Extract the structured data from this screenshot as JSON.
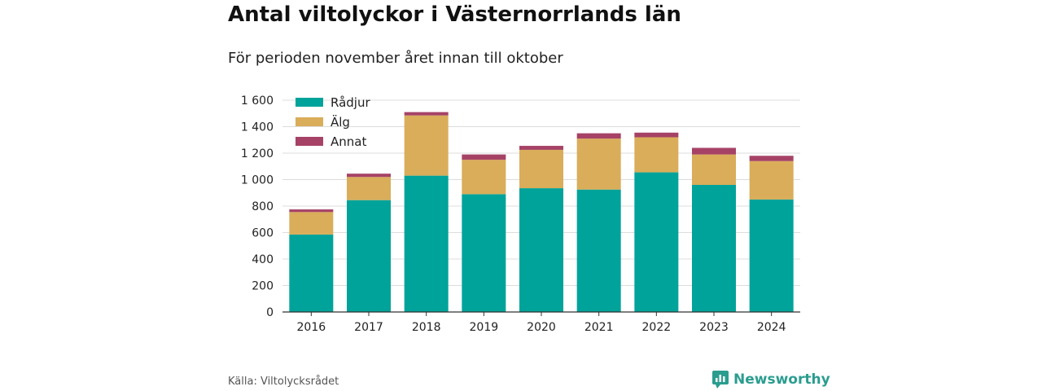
{
  "title": "Antal viltolyckor i Västernorrlands län",
  "subtitle": "För perioden november året innan till oktober",
  "source": "Källa: Viltolycksrådet",
  "brand": {
    "name": "Newsworthy",
    "icon": "newsworthy-logo-icon",
    "color": "#2a9d8f"
  },
  "chart_data": {
    "type": "bar",
    "stacked": true,
    "categories": [
      "2016",
      "2017",
      "2018",
      "2019",
      "2020",
      "2021",
      "2022",
      "2023",
      "2024"
    ],
    "series": [
      {
        "name": "Rådjur",
        "color": "#00a39a",
        "values": [
          585,
          845,
          1030,
          890,
          935,
          925,
          1055,
          960,
          850
        ]
      },
      {
        "name": "Älg",
        "color": "#d9ad5a",
        "values": [
          170,
          175,
          455,
          260,
          290,
          385,
          265,
          230,
          290
        ]
      },
      {
        "name": "Annat",
        "color": "#a64266",
        "values": [
          20,
          25,
          25,
          40,
          30,
          40,
          35,
          50,
          40
        ]
      }
    ],
    "ylim": [
      0,
      1600
    ],
    "yticks": [
      0,
      200,
      400,
      600,
      800,
      1000,
      1200,
      1400,
      1600
    ],
    "ytick_labels": [
      "0",
      "200",
      "400",
      "600",
      "800",
      "1 000",
      "1 200",
      "1 400",
      "1 600"
    ],
    "grid": true,
    "legend_position": "top-left",
    "xlabel": "",
    "ylabel": ""
  }
}
